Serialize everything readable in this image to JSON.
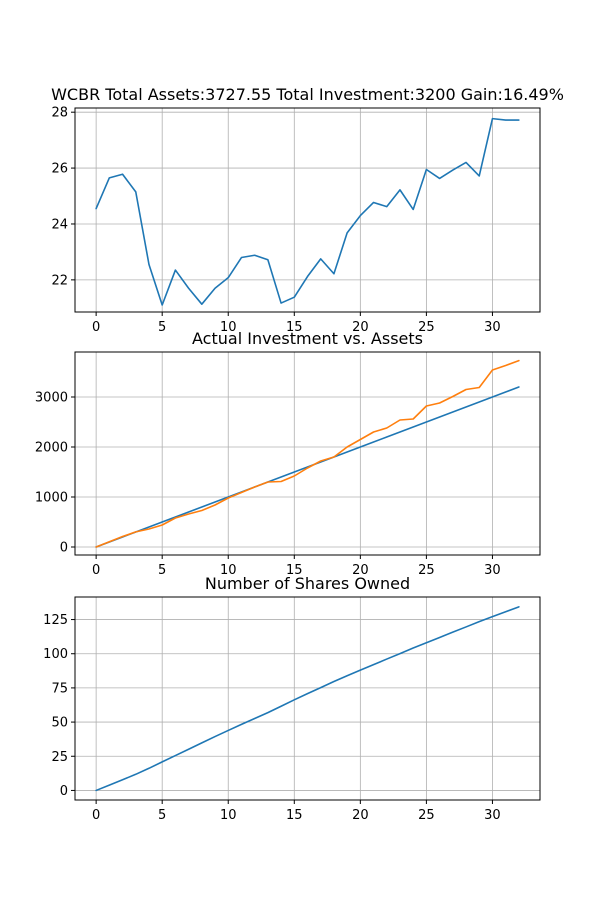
{
  "chart_data": [
    {
      "type": "line",
      "title": "WCBR Total Assets:3727.55  Total Investment:3200  Gain:16.49%",
      "xlim": [
        -1.6,
        33.6
      ],
      "ylim": [
        20.85,
        28.15
      ],
      "xticks": [
        0,
        5,
        10,
        15,
        20,
        25,
        30
      ],
      "yticks": [
        22,
        24,
        26,
        28
      ],
      "grid": true,
      "series": [
        {
          "color": "#1f77b4",
          "x": [
            0,
            1,
            2,
            3,
            4,
            5,
            6,
            7,
            8,
            9,
            10,
            11,
            12,
            13,
            14,
            15,
            16,
            17,
            18,
            19,
            20,
            21,
            22,
            23,
            24,
            25,
            26,
            27,
            28,
            29,
            30,
            31,
            32
          ],
          "y": [
            24.55,
            25.65,
            25.78,
            25.15,
            22.55,
            21.1,
            22.35,
            21.7,
            21.13,
            21.7,
            22.08,
            22.8,
            22.88,
            22.72,
            21.17,
            21.38,
            22.12,
            22.75,
            22.22,
            23.68,
            24.3,
            24.77,
            24.62,
            25.22,
            24.52,
            25.95,
            25.63,
            25.93,
            26.2,
            25.72,
            27.77,
            27.72,
            27.72
          ]
        }
      ]
    },
    {
      "type": "line",
      "title": "Actual Investment vs. Assets",
      "xlim": [
        -1.6,
        33.6
      ],
      "ylim": [
        -160,
        3900
      ],
      "xticks": [
        0,
        5,
        10,
        15,
        20,
        25,
        30
      ],
      "yticks": [
        0,
        1000,
        2000,
        3000
      ],
      "grid": true,
      "series": [
        {
          "color": "#1f77b4",
          "x": [
            0,
            1,
            2,
            3,
            4,
            5,
            6,
            7,
            8,
            9,
            10,
            11,
            12,
            13,
            14,
            15,
            16,
            17,
            18,
            19,
            20,
            21,
            22,
            23,
            24,
            25,
            26,
            27,
            28,
            29,
            30,
            31,
            32
          ],
          "y": [
            0,
            100,
            200,
            300,
            400,
            500,
            600,
            700,
            800,
            900,
            1000,
            1100,
            1200,
            1300,
            1400,
            1500,
            1600,
            1700,
            1800,
            1900,
            2000,
            2100,
            2200,
            2300,
            2400,
            2500,
            2600,
            2700,
            2800,
            2900,
            3000,
            3100,
            3200
          ]
        },
        {
          "color": "#ff7f0e",
          "x": [
            0,
            1,
            2,
            3,
            4,
            5,
            6,
            7,
            8,
            9,
            10,
            11,
            12,
            13,
            14,
            15,
            16,
            17,
            18,
            19,
            20,
            21,
            22,
            23,
            24,
            25,
            26,
            27,
            28,
            29,
            30,
            31,
            32
          ],
          "y": [
            0,
            104,
            209,
            302,
            360,
            440,
            580,
            660,
            730,
            840,
            980,
            1090,
            1200,
            1300,
            1310,
            1420,
            1580,
            1720,
            1800,
            2000,
            2150,
            2300,
            2380,
            2540,
            2560,
            2820,
            2880,
            3010,
            3150,
            3190,
            3540,
            3630,
            3728
          ]
        }
      ]
    },
    {
      "type": "line",
      "title": "Number of Shares Owned",
      "xlim": [
        -1.6,
        33.6
      ],
      "ylim": [
        -7,
        141.5
      ],
      "xticks": [
        0,
        5,
        10,
        15,
        20,
        25,
        30
      ],
      "yticks": [
        0,
        25,
        50,
        75,
        100,
        125
      ],
      "grid": true,
      "series": [
        {
          "color": "#1f77b4",
          "x": [
            0,
            1,
            2,
            3,
            4,
            5,
            6,
            7,
            8,
            9,
            10,
            11,
            12,
            13,
            14,
            15,
            16,
            17,
            18,
            19,
            20,
            21,
            22,
            23,
            24,
            25,
            26,
            27,
            28,
            29,
            30,
            31,
            32
          ],
          "y": [
            0,
            3.9,
            7.8,
            11.8,
            16.2,
            20.9,
            25.5,
            30.1,
            34.8,
            39.4,
            43.9,
            48.3,
            52.6,
            56.9,
            61.6,
            66.3,
            70.8,
            75.2,
            79.7,
            83.9,
            88.0,
            92.0,
            96.1,
            100.1,
            104.2,
            108.0,
            111.9,
            115.8,
            119.6,
            123.5,
            127.1,
            130.7,
            134.3
          ]
        }
      ]
    }
  ]
}
